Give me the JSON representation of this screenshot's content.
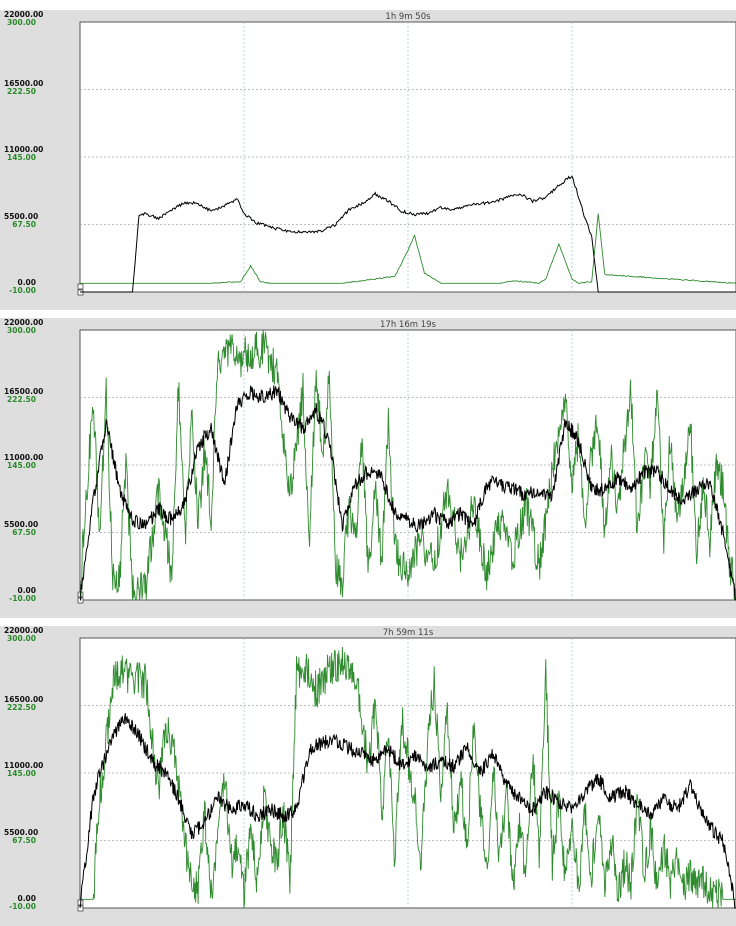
{
  "chart_data": [
    {
      "type": "line",
      "title": "1h 9m 50s",
      "left_axis_ticks": [
        "22000.00",
        "16500.00",
        "11000.00",
        "5500.00",
        "0.00"
      ],
      "right_axis_ticks": [
        "300.00",
        "222.50",
        "145.00",
        "67.50",
        "-10.00"
      ],
      "left_ylim": [
        0,
        22000
      ],
      "right_ylim": [
        -10,
        300
      ],
      "grid": true,
      "series": [
        {
          "color": "#000000",
          "axis": "left",
          "x": [
            0,
            0.08,
            0.09,
            0.1,
            0.12,
            0.14,
            0.16,
            0.18,
            0.2,
            0.22,
            0.24,
            0.25,
            0.27,
            0.29,
            0.31,
            0.33,
            0.35,
            0.37,
            0.39,
            0.41,
            0.43,
            0.45,
            0.47,
            0.49,
            0.51,
            0.53,
            0.55,
            0.57,
            0.59,
            0.61,
            0.63,
            0.65,
            0.67,
            0.69,
            0.71,
            0.73,
            0.75,
            0.77,
            0.78,
            0.79,
            0.8,
            0.81,
            0.82,
            0.83,
            1.0
          ],
          "values": [
            0,
            0,
            6200,
            6400,
            6000,
            6700,
            7300,
            7200,
            6600,
            7000,
            7600,
            6400,
            5600,
            5300,
            5000,
            4900,
            4900,
            5000,
            5500,
            6700,
            7200,
            8000,
            7400,
            6600,
            6300,
            6400,
            6900,
            6700,
            7100,
            7200,
            7300,
            7700,
            8000,
            7400,
            7700,
            8700,
            9500,
            6000,
            4500,
            0,
            0,
            0,
            0,
            0,
            0
          ]
        },
        {
          "color": "#2e8b2e",
          "axis": "right",
          "x": [
            0,
            0.1,
            0.2,
            0.245,
            0.26,
            0.275,
            0.29,
            0.4,
            0.48,
            0.495,
            0.51,
            0.525,
            0.55,
            0.62,
            0.64,
            0.66,
            0.7,
            0.71,
            0.72,
            0.73,
            0.75,
            0.76,
            0.78,
            0.79,
            0.8,
            1.0
          ],
          "values": [
            0,
            0,
            0,
            2,
            20,
            2,
            0,
            0,
            8,
            30,
            55,
            12,
            0,
            0,
            0,
            3,
            0,
            5,
            25,
            45,
            5,
            0,
            2,
            80,
            10,
            0
          ]
        }
      ]
    },
    {
      "type": "line",
      "title": "17h 16m 19s",
      "left_axis_ticks": [
        "22000.00",
        "16500.00",
        "11000.00",
        "5500.00",
        "0.00"
      ],
      "right_axis_ticks": [
        "300.00",
        "222.50",
        "145.00",
        "67.50",
        "-10.00"
      ],
      "left_ylim": [
        0,
        22000
      ],
      "right_ylim": [
        -10,
        300
      ],
      "grid": true,
      "series": [
        {
          "color": "#000000",
          "axis": "left",
          "x": [
            0,
            0.02,
            0.04,
            0.06,
            0.08,
            0.1,
            0.12,
            0.14,
            0.16,
            0.18,
            0.2,
            0.22,
            0.24,
            0.26,
            0.28,
            0.3,
            0.32,
            0.34,
            0.36,
            0.38,
            0.4,
            0.42,
            0.44,
            0.46,
            0.48,
            0.5,
            0.52,
            0.54,
            0.56,
            0.58,
            0.6,
            0.62,
            0.64,
            0.66,
            0.68,
            0.7,
            0.72,
            0.74,
            0.76,
            0.78,
            0.8,
            0.82,
            0.84,
            0.86,
            0.88,
            0.9,
            0.92,
            0.94,
            0.96,
            0.98,
            1.0
          ],
          "values": [
            0,
            8000,
            14500,
            9000,
            6500,
            6000,
            7500,
            6500,
            8000,
            12500,
            14000,
            9500,
            16000,
            17000,
            16500,
            17000,
            15000,
            14000,
            15500,
            13000,
            6000,
            9500,
            10500,
            10000,
            7000,
            6500,
            6000,
            7000,
            6200,
            7000,
            6000,
            9500,
            9500,
            9000,
            8500,
            9000,
            8500,
            14500,
            13000,
            9000,
            9000,
            10000,
            9000,
            10500,
            10500,
            9000,
            8000,
            9000,
            9500,
            5500,
            0
          ]
        },
        {
          "color": "#2e8b2e",
          "axis": "right",
          "x": [
            0,
            0.02,
            0.03,
            0.04,
            0.05,
            0.06,
            0.07,
            0.08,
            0.1,
            0.12,
            0.14,
            0.15,
            0.16,
            0.17,
            0.18,
            0.19,
            0.2,
            0.21,
            0.22,
            0.23,
            0.24,
            0.26,
            0.28,
            0.3,
            0.32,
            0.34,
            0.35,
            0.36,
            0.37,
            0.38,
            0.39,
            0.4,
            0.41,
            0.42,
            0.43,
            0.44,
            0.45,
            0.46,
            0.47,
            0.48,
            0.49,
            0.5,
            0.52,
            0.54,
            0.56,
            0.58,
            0.6,
            0.62,
            0.64,
            0.66,
            0.68,
            0.7,
            0.72,
            0.74,
            0.75,
            0.76,
            0.77,
            0.78,
            0.79,
            0.8,
            0.81,
            0.82,
            0.83,
            0.84,
            0.85,
            0.86,
            0.87,
            0.88,
            0.89,
            0.9,
            0.91,
            0.92,
            0.93,
            0.94,
            0.95,
            0.96,
            0.97,
            0.98,
            0.99,
            1.0
          ],
          "values": [
            0,
            220,
            60,
            230,
            20,
            10,
            150,
            5,
            3,
            120,
            15,
            240,
            60,
            200,
            80,
            160,
            90,
            255,
            270,
            275,
            265,
            275,
            280,
            250,
            110,
            230,
            60,
            250,
            160,
            240,
            30,
            10,
            100,
            60,
            170,
            20,
            120,
            30,
            190,
            50,
            30,
            20,
            60,
            30,
            120,
            40,
            100,
            20,
            80,
            40,
            100,
            30,
            140,
            230,
            120,
            180,
            80,
            160,
            200,
            60,
            150,
            100,
            170,
            230,
            60,
            150,
            120,
            240,
            50,
            180,
            80,
            120,
            200,
            40,
            130,
            60,
            140,
            120,
            30,
            0
          ]
        }
      ]
    },
    {
      "type": "line",
      "title": "7h 59m 11s",
      "left_axis_ticks": [
        "22000.00",
        "16500.00",
        "11000.00",
        "5500.00",
        "0.00"
      ],
      "right_axis_ticks": [
        "300.00",
        "222.50",
        "145.00",
        "67.50",
        "-10.00"
      ],
      "left_ylim": [
        0,
        22000
      ],
      "right_ylim": [
        -10,
        300
      ],
      "grid": true,
      "series": [
        {
          "color": "#000000",
          "axis": "left",
          "x": [
            0,
            0.02,
            0.03,
            0.05,
            0.07,
            0.09,
            0.11,
            0.13,
            0.15,
            0.17,
            0.19,
            0.21,
            0.23,
            0.25,
            0.27,
            0.29,
            0.31,
            0.33,
            0.35,
            0.37,
            0.39,
            0.41,
            0.43,
            0.45,
            0.47,
            0.49,
            0.51,
            0.53,
            0.55,
            0.57,
            0.59,
            0.61,
            0.63,
            0.65,
            0.67,
            0.69,
            0.71,
            0.73,
            0.75,
            0.77,
            0.79,
            0.81,
            0.83,
            0.85,
            0.87,
            0.89,
            0.91,
            0.93,
            0.95,
            0.97,
            0.98,
            1.0
          ],
          "values": [
            0,
            9000,
            11000,
            14000,
            15500,
            14000,
            12000,
            11000,
            9000,
            6000,
            7000,
            9000,
            8000,
            8500,
            7500,
            8000,
            7500,
            8000,
            13000,
            13500,
            13500,
            13000,
            12500,
            12000,
            13000,
            11500,
            12500,
            11500,
            12000,
            11500,
            13000,
            11000,
            12500,
            10000,
            9000,
            8000,
            9500,
            8500,
            8000,
            9500,
            10500,
            9000,
            9500,
            8500,
            7500,
            9000,
            8000,
            10000,
            7500,
            6000,
            5500,
            0
          ]
        },
        {
          "color": "#2e8b2e",
          "axis": "right",
          "x": [
            0,
            0.02,
            0.03,
            0.04,
            0.05,
            0.06,
            0.08,
            0.1,
            0.12,
            0.13,
            0.14,
            0.15,
            0.16,
            0.17,
            0.18,
            0.19,
            0.2,
            0.21,
            0.22,
            0.23,
            0.24,
            0.25,
            0.26,
            0.27,
            0.28,
            0.29,
            0.3,
            0.31,
            0.32,
            0.33,
            0.34,
            0.36,
            0.38,
            0.4,
            0.42,
            0.44,
            0.45,
            0.46,
            0.47,
            0.48,
            0.49,
            0.5,
            0.51,
            0.52,
            0.53,
            0.54,
            0.55,
            0.56,
            0.57,
            0.58,
            0.59,
            0.6,
            0.61,
            0.62,
            0.63,
            0.64,
            0.65,
            0.66,
            0.67,
            0.68,
            0.69,
            0.7,
            0.71,
            0.72,
            0.73,
            0.74,
            0.75,
            0.76,
            0.77,
            0.78,
            0.79,
            0.8,
            0.81,
            0.82,
            0.83,
            0.84,
            0.85,
            0.86,
            0.87,
            0.88,
            0.89,
            0.9,
            0.91,
            0.92,
            0.93,
            0.94,
            0.95,
            0.96,
            0.97,
            0.98,
            0.99,
            1.0
          ],
          "values": [
            0,
            0,
            120,
            180,
            250,
            260,
            255,
            250,
            120,
            200,
            180,
            130,
            60,
            30,
            10,
            100,
            10,
            70,
            150,
            40,
            60,
            10,
            80,
            20,
            120,
            60,
            40,
            100,
            20,
            260,
            270,
            240,
            265,
            270,
            260,
            150,
            230,
            100,
            190,
            40,
            210,
            160,
            120,
            40,
            180,
            250,
            130,
            220,
            80,
            140,
            60,
            200,
            100,
            30,
            150,
            40,
            130,
            20,
            80,
            30,
            170,
            50,
            260,
            40,
            120,
            20,
            90,
            10,
            100,
            30,
            110,
            20,
            70,
            10,
            40,
            20,
            110,
            30,
            80,
            10,
            60,
            20,
            40,
            10,
            30,
            10,
            20,
            10,
            5,
            0,
            0,
            0
          ]
        }
      ]
    }
  ]
}
